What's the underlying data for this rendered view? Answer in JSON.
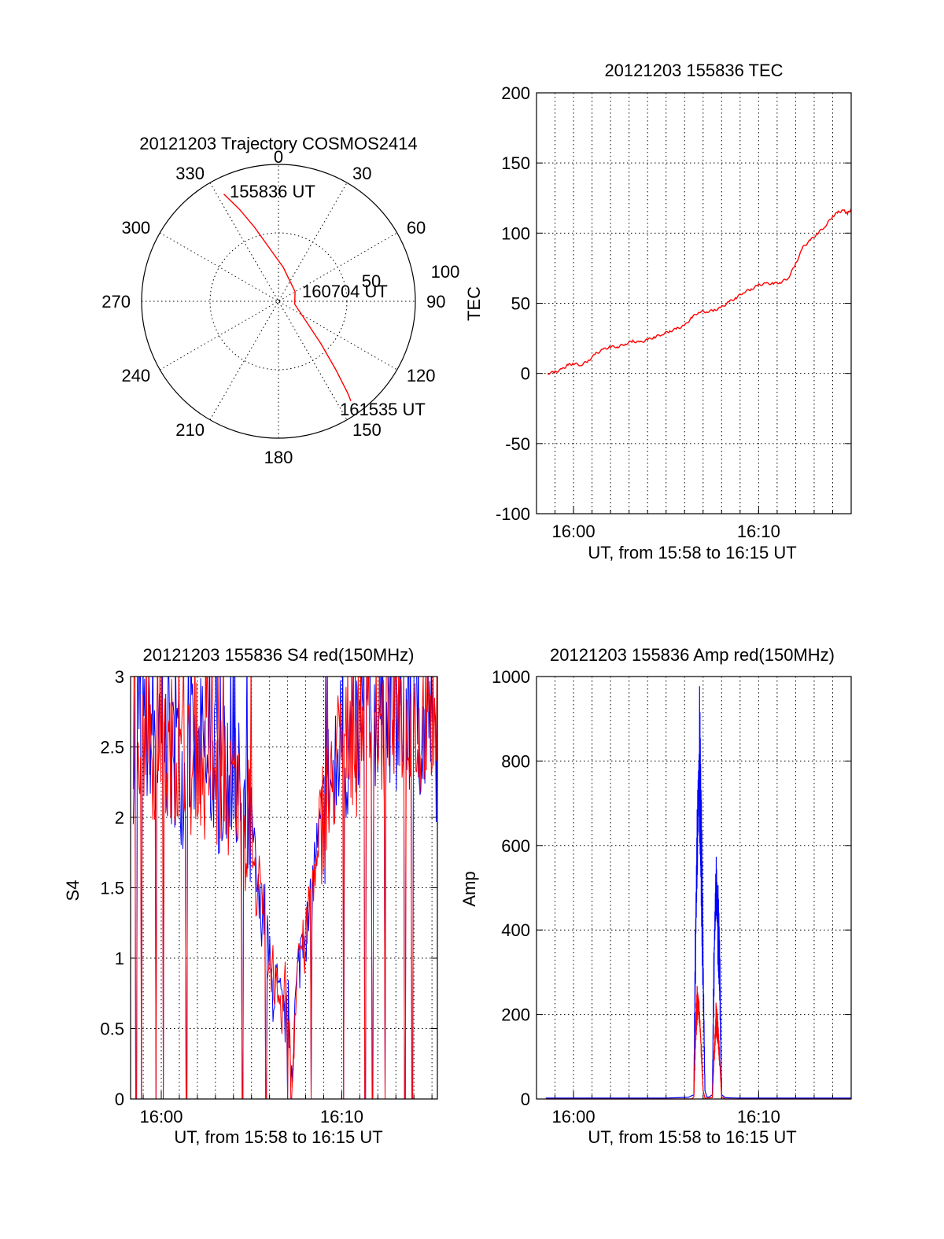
{
  "colors": {
    "red": "#ff0000",
    "blue": "#0000ff",
    "axis": "#000000"
  },
  "chart_data": [
    {
      "id": "trajectory",
      "type": "polar-trajectory",
      "title": "20121203 Trajectory COSMOS2414",
      "azimuth_labels": [
        "0",
        "30",
        "60",
        "90",
        "120",
        "150",
        "180",
        "210",
        "240",
        "270",
        "300",
        "330"
      ],
      "radial_ring_labels": [
        "100",
        "50"
      ],
      "radial_max": 100,
      "start_label": "155836 UT",
      "mid_label": "160704 UT",
      "end_label": "161535 UT",
      "series": [
        {
          "color": "red",
          "points": [
            [
              333,
              88
            ],
            [
              337,
              73
            ],
            [
              342,
              57
            ],
            [
              350,
              40
            ],
            [
              8,
              25
            ],
            [
              60,
              14
            ],
            [
              100,
              12
            ],
            [
              125,
              24
            ],
            [
              135,
              44
            ],
            [
              140,
              65
            ],
            [
              143,
              84
            ],
            [
              144,
              90
            ]
          ]
        }
      ]
    },
    {
      "id": "tec",
      "type": "line",
      "title": "20121203 155836 TEC",
      "xlabel": "UT, from 15:58 to 16:15 UT",
      "ylabel": "TEC",
      "xlim": [
        -2.0,
        15.0
      ],
      "ylim": [
        -100,
        200
      ],
      "yticks": [
        -100,
        -50,
        0,
        50,
        100,
        150,
        200
      ],
      "xticks": [
        {
          "value": 0,
          "label": "16:00"
        },
        {
          "value": 10,
          "label": "16:10"
        }
      ],
      "xgrid": [
        -1,
        0,
        1,
        2,
        3,
        4,
        5,
        6,
        7,
        8,
        9,
        10,
        11,
        12,
        13,
        14
      ],
      "series": [
        {
          "color": "red",
          "x": [
            -1.4,
            -1.0,
            -0.6,
            -0.3,
            0.0,
            0.4,
            0.8,
            1.2,
            1.6,
            2.0,
            2.4,
            2.8,
            3.2,
            3.6,
            4.0,
            4.4,
            4.8,
            5.2,
            5.6,
            6.0,
            6.4,
            6.8,
            7.2,
            7.6,
            8.0,
            8.4,
            8.8,
            9.2,
            9.6,
            10.0,
            10.4,
            10.8,
            11.2,
            11.6,
            12.0,
            12.4,
            12.8,
            13.2,
            13.6,
            14.0,
            14.3,
            14.6,
            14.8,
            15.0
          ],
          "values": [
            0,
            1,
            3,
            6,
            7,
            6,
            9,
            14,
            17,
            19,
            19,
            21,
            23,
            22,
            24,
            26,
            28,
            30,
            32,
            34,
            40,
            44,
            44,
            45,
            47,
            51,
            54,
            58,
            60,
            63,
            64,
            64,
            65,
            68,
            78,
            90,
            95,
            100,
            105,
            112,
            115,
            116,
            114,
            117
          ]
        }
      ]
    },
    {
      "id": "s4",
      "type": "line",
      "title": "20121203 155836 S4 red(150MHz)",
      "xlabel": "UT, from 15:58 to 16:15 UT",
      "ylabel": "S4",
      "xlim": [
        -1.7,
        15.3
      ],
      "ylim": [
        0,
        3
      ],
      "yticks": [
        0,
        0.5,
        1,
        1.5,
        2,
        2.5,
        3
      ],
      "ytick_labels": [
        "0",
        "0.5",
        "1",
        "1.5",
        "2",
        "2.5",
        "3"
      ],
      "xticks": [
        {
          "value": 0,
          "label": "16:00"
        },
        {
          "value": 10,
          "label": "16:10"
        }
      ],
      "xgrid": [
        -1,
        0,
        1,
        2,
        3,
        4,
        5,
        6,
        7,
        8,
        9,
        10,
        11,
        12,
        13,
        14,
        15
      ],
      "envelope": {
        "x": [
          -1.5,
          0.0,
          1.0,
          2.0,
          3.0,
          4.0,
          5.0,
          5.5,
          6.0,
          6.5,
          7.0,
          7.2,
          7.5,
          8.0,
          8.5,
          9.0,
          10.0,
          11.0,
          12.0,
          13.0,
          14.0,
          15.0
        ],
        "mean_values": [
          2.7,
          2.5,
          2.4,
          2.4,
          2.3,
          2.2,
          1.8,
          1.4,
          1.0,
          0.6,
          0.7,
          0.1,
          0.9,
          1.2,
          1.6,
          2.0,
          2.5,
          2.6,
          2.7,
          2.7,
          2.7,
          2.6
        ]
      },
      "dropouts": [
        -1.4,
        -1.1,
        -0.3,
        0.1,
        1.4,
        4.5,
        5.8,
        7.0,
        8.3,
        10.1,
        11.3,
        11.7,
        12.4,
        13.5,
        13.9
      ]
    },
    {
      "id": "amp",
      "type": "line",
      "title": "20121203 155836 Amp red(150MHz)",
      "xlabel": "UT, from 15:58 to 16:15 UT",
      "ylabel": "Amp",
      "xlim": [
        -2.0,
        15.0
      ],
      "ylim": [
        0,
        1000
      ],
      "yticks": [
        0,
        200,
        400,
        600,
        800,
        1000
      ],
      "xticks": [
        {
          "value": 0,
          "label": "16:00"
        },
        {
          "value": 10,
          "label": "16:10"
        }
      ],
      "xgrid": [
        -1,
        0,
        1,
        2,
        3,
        4,
        5,
        6,
        7,
        8,
        9,
        10,
        11,
        12,
        13,
        14
      ],
      "series": [
        {
          "color": "blue",
          "x": [
            -1.5,
            5.0,
            6.2,
            6.5,
            6.6,
            6.7,
            6.8,
            6.9,
            7.0,
            7.1,
            7.2,
            7.3,
            7.5,
            7.6,
            7.7,
            7.8,
            7.9,
            8.0,
            8.2,
            9.0,
            15.0
          ],
          "values": [
            2,
            2,
            4,
            10,
            400,
            650,
            820,
            600,
            300,
            20,
            5,
            4,
            10,
            350,
            515,
            420,
            300,
            10,
            3,
            2,
            2
          ]
        },
        {
          "color": "red",
          "x": [
            -1.5,
            6.4,
            6.5,
            6.6,
            6.7,
            6.8,
            6.9,
            7.0,
            7.1,
            7.5,
            7.6,
            7.7,
            7.8,
            7.9,
            8.0,
            8.2,
            15.0
          ],
          "values": [
            0,
            0,
            5,
            160,
            240,
            200,
            120,
            20,
            2,
            3,
            100,
            190,
            160,
            90,
            5,
            0,
            0
          ]
        }
      ]
    }
  ]
}
